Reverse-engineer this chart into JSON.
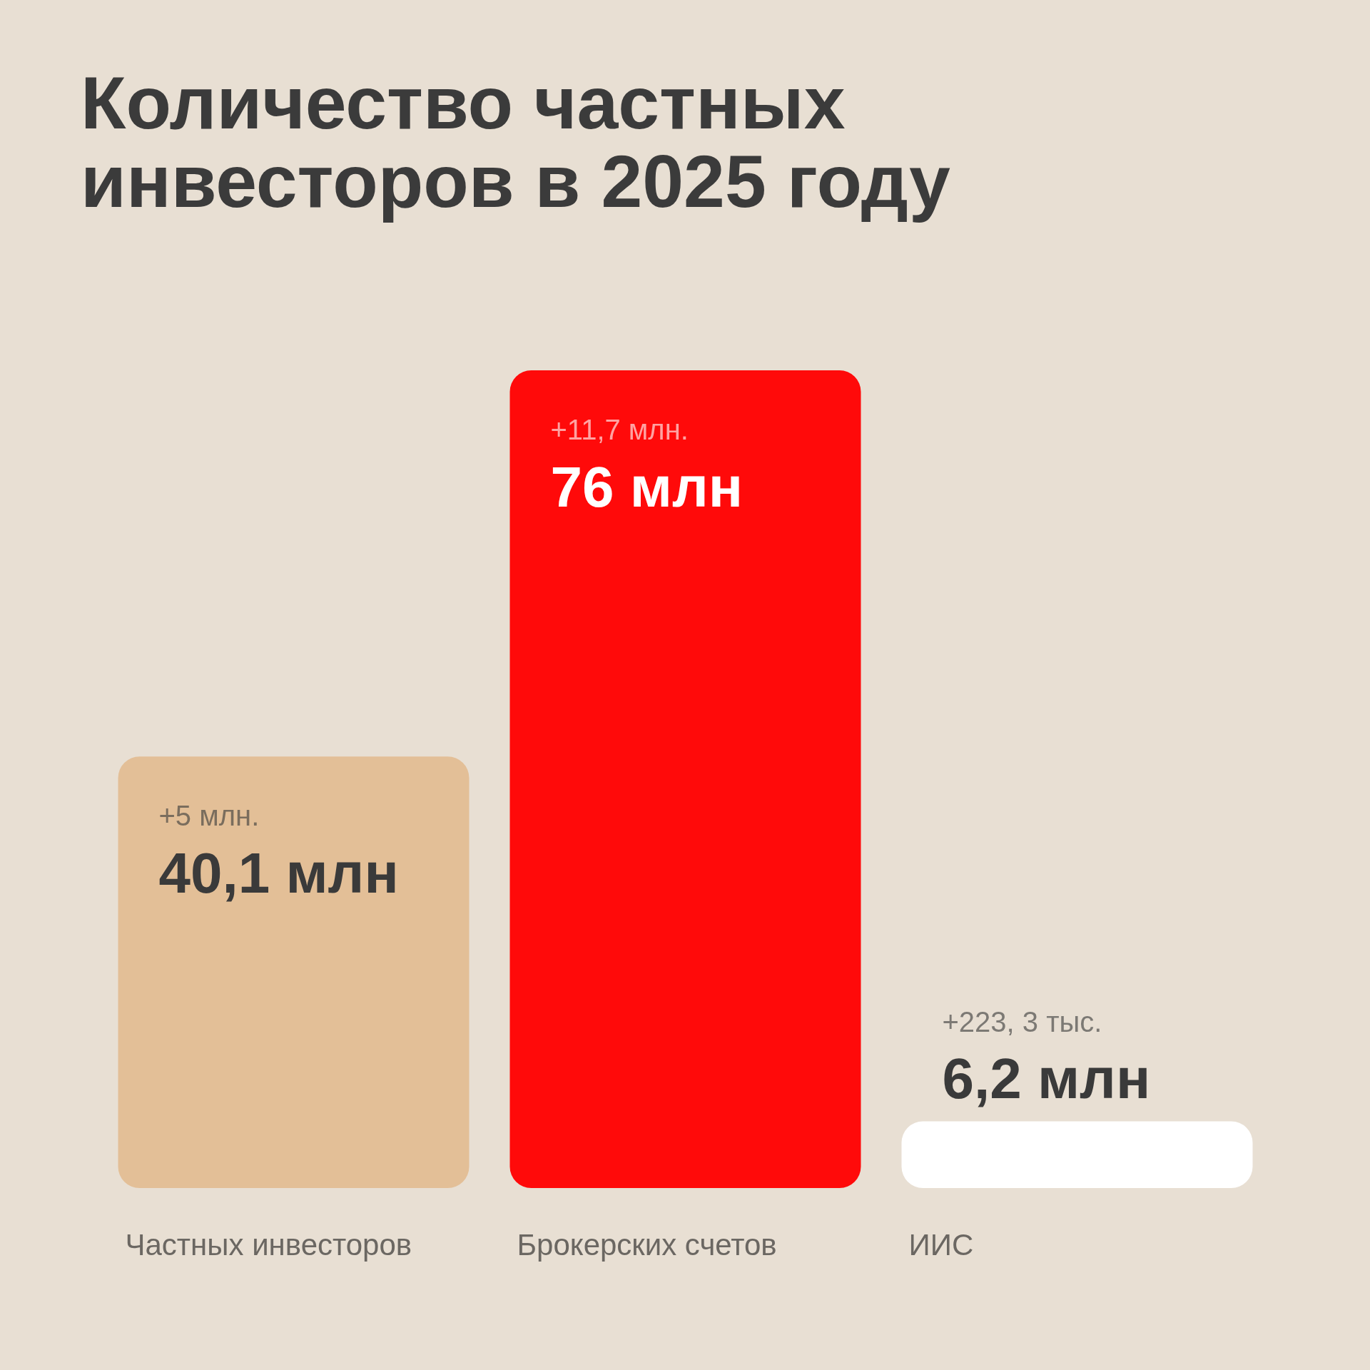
{
  "chart_data": {
    "type": "bar",
    "title": "Количество частных инвесторов в 2025 году",
    "categories": [
      "Частных инвесторов",
      "Брокерских счетов",
      "ИИС"
    ],
    "values": [
      40.1,
      76,
      6.2
    ],
    "colors": [
      "#e3bf97",
      "#ff0a0a",
      "#ffffff"
    ],
    "value_labels": [
      "40,1 млн",
      "76 млн",
      "6,2 млн"
    ],
    "annotations": [
      {
        "text": "+5 млн.",
        "x": "Частных инвесторов",
        "y": 40.1
      },
      {
        "text": "+11,7 млн.",
        "x": "Брокерских счетов",
        "y": 76
      },
      {
        "text": "+223, 3 тыс.",
        "x": "ИИС",
        "y": 6.2
      }
    ],
    "tick_labels": "x"
  }
}
